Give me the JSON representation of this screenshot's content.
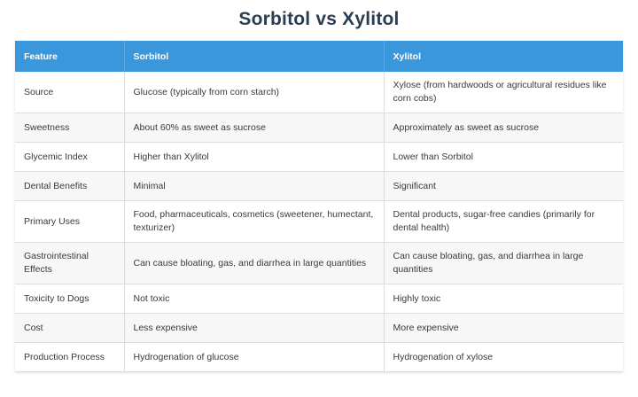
{
  "title": "Sorbitol vs Xylitol",
  "colors": {
    "header_bg": "#3a97dc",
    "title_text": "#2b3e50"
  },
  "table": {
    "headers": [
      "Feature",
      "Sorbitol",
      "Xylitol"
    ],
    "rows": [
      [
        "Source",
        "Glucose (typically from corn starch)",
        "Xylose (from hardwoods or agricultural residues like corn cobs)"
      ],
      [
        "Sweetness",
        "About 60% as sweet as sucrose",
        "Approximately as sweet as sucrose"
      ],
      [
        "Glycemic Index",
        "Higher than Xylitol",
        "Lower than Sorbitol"
      ],
      [
        "Dental Benefits",
        "Minimal",
        "Significant"
      ],
      [
        "Primary Uses",
        "Food, pharmaceuticals, cosmetics (sweetener, humectant, texturizer)",
        "Dental products, sugar-free candies (primarily for dental health)"
      ],
      [
        "Gastrointestinal Effects",
        "Can cause bloating, gas, and diarrhea in large quantities",
        "Can cause bloating, gas, and diarrhea in large quantities"
      ],
      [
        "Toxicity to Dogs",
        "Not toxic",
        "Highly toxic"
      ],
      [
        "Cost",
        "Less expensive",
        "More expensive"
      ],
      [
        "Production Process",
        "Hydrogenation of glucose",
        "Hydrogenation of xylose"
      ]
    ]
  }
}
